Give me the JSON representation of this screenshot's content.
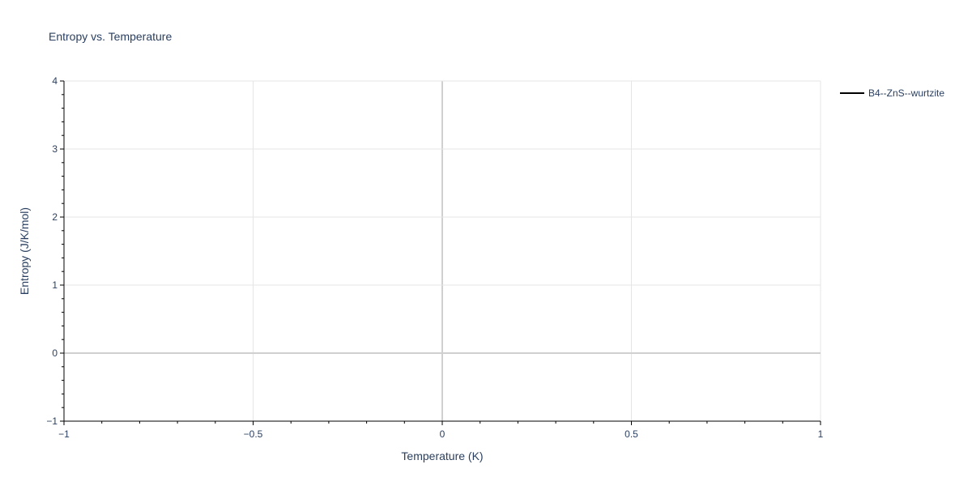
{
  "chart_data": {
    "type": "line",
    "title": "Entropy vs. Temperature",
    "xlabel": "Temperature (K)",
    "ylabel": "Entropy (J/K/mol)",
    "xlim": [
      -1,
      1
    ],
    "ylim": [
      -1,
      4
    ],
    "x_ticks": [
      -1,
      -0.5,
      0,
      0.5,
      1
    ],
    "x_tick_labels": [
      "−1",
      "−0.5",
      "0",
      "0.5",
      "1"
    ],
    "y_ticks": [
      -1,
      0,
      1,
      2,
      3,
      4
    ],
    "y_tick_labels": [
      "−1",
      "0",
      "1",
      "2",
      "3",
      "4"
    ],
    "grid": true,
    "legend_position": "top-right",
    "series": [
      {
        "name": "B4--ZnS--wurtzite",
        "color": "#000000",
        "x": [],
        "y": []
      }
    ]
  }
}
